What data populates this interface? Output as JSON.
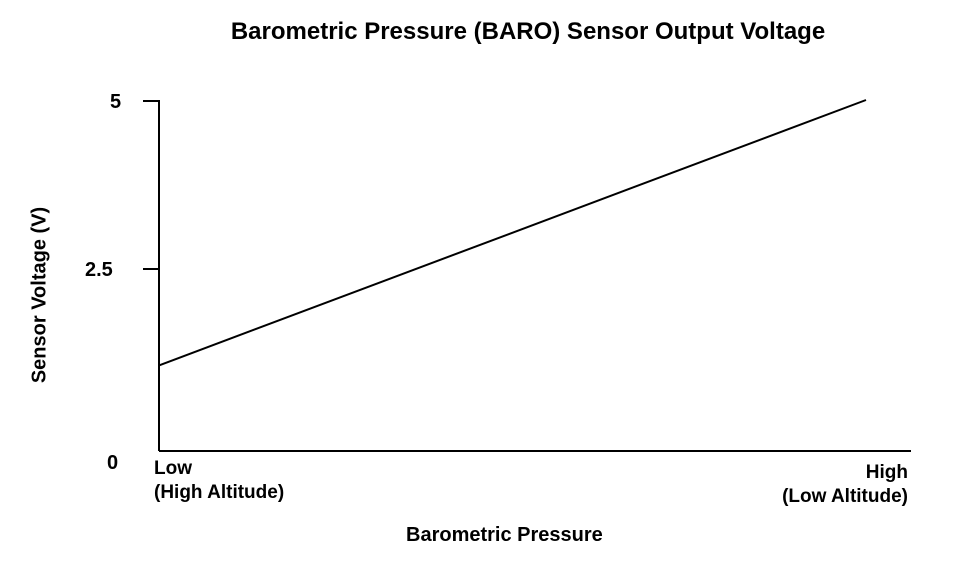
{
  "chart_data": {
    "type": "line",
    "title": "Barometric Pressure (BARO) Sensor Output Voltage",
    "xlabel": "Barometric Pressure",
    "ylabel": "Sensor Voltage (V)",
    "x_tick_low": "Low\n(High Altitude)",
    "x_tick_high": "High\n(Low Altitude)",
    "y_ticks": [
      "0",
      "2.5",
      "5"
    ],
    "ylim": [
      0,
      5
    ],
    "xlim": [
      0,
      1
    ],
    "grid": false,
    "series": [
      {
        "x": [
          0,
          1
        ],
        "values": [
          1.05,
          5.0
        ]
      }
    ]
  }
}
